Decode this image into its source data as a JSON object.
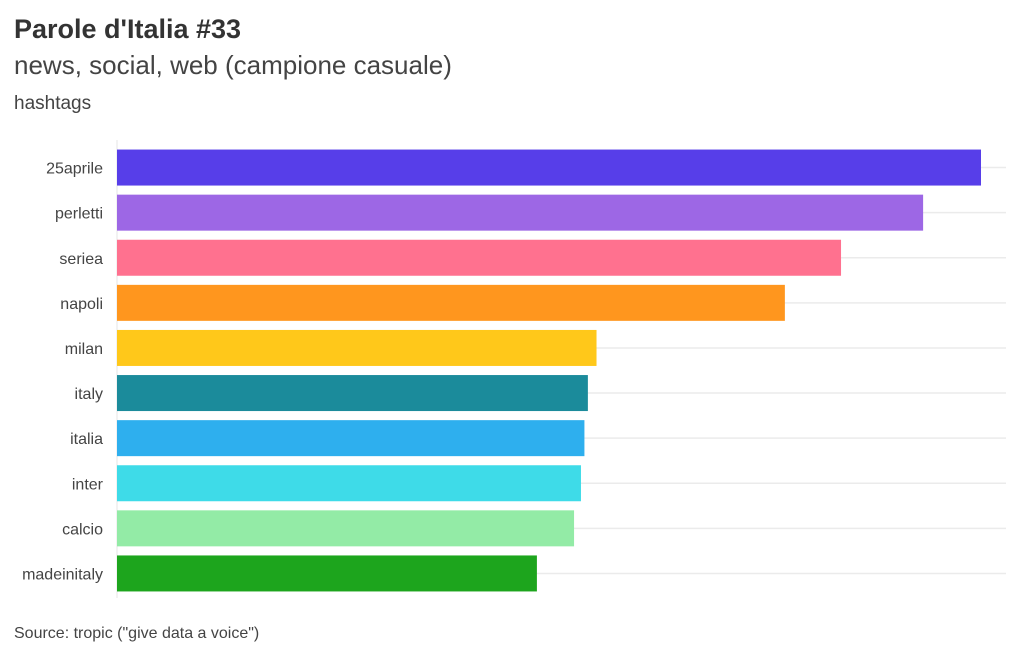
{
  "header": {
    "title": "Parole d'Italia #33",
    "subtitle": "news, social, web (campione casuale)",
    "ylabel": "hashtags"
  },
  "footer": {
    "caption": "Source: tropic (\"give data a voice\")"
  },
  "chart_data": {
    "type": "bar",
    "orientation": "horizontal",
    "title": "Parole d'Italia #33",
    "subtitle": "news, social, web (campione casuale)",
    "ylabel": "hashtags",
    "categories": [
      "25aprile",
      "perletti",
      "seriea",
      "napoli",
      "milan",
      "italy",
      "italia",
      "inter",
      "calcio",
      "madeinitaly"
    ],
    "values": [
      100,
      93.3,
      83.8,
      77.3,
      55.5,
      54.5,
      54.1,
      53.7,
      52.9,
      48.6
    ],
    "colors": [
      "#573ee9",
      "#9d67e5",
      "#ff718f",
      "#ff961e",
      "#ffc81a",
      "#1b8b9b",
      "#2eafee",
      "#3edbe8",
      "#93eba6",
      "#1da51d"
    ],
    "xlim": [
      0,
      100
    ],
    "x_axis_labels_shown": false,
    "grid": "horizontal",
    "legend": "none"
  }
}
